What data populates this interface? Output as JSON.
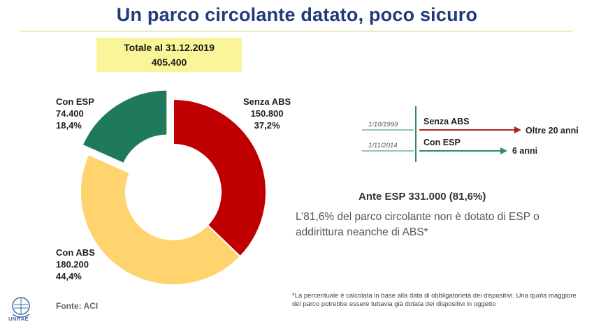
{
  "title": "Un parco circolante datato, poco sicuro",
  "total": {
    "line1": "Totale al 31.12.2019",
    "line2": "405.400"
  },
  "chart_data": {
    "type": "pie",
    "variant": "donut",
    "slices": [
      {
        "name": "Senza ABS",
        "value": 150800,
        "value_label": "150.800",
        "percent_label": "37,2%",
        "color": "#c00000",
        "exploded": false
      },
      {
        "name": "Con ABS",
        "value": 180200,
        "value_label": "180.200",
        "percent_label": "44,4%",
        "color": "#ffd36e",
        "exploded": false
      },
      {
        "name": "Con ESP",
        "value": 74400,
        "value_label": "74.400",
        "percent_label": "18,4%",
        "color": "#1f7a5c",
        "exploded": true
      }
    ]
  },
  "timeline": [
    {
      "date": "1/10/1999",
      "name": "Senza ABS",
      "end_label": "Oltre 20 anni",
      "color": "#b22222"
    },
    {
      "date": "1/11/2014",
      "name": "Con ESP",
      "end_label": "6 anni",
      "color": "#2e8b6e"
    }
  ],
  "ante": "Ante ESP 331.000 (81,6%)",
  "description": "L’81,6% del parco circolante non è dotato di ESP o addirittura neanche di ABS*",
  "footnote": "*La percentuale è calcolata in base alla data di obbligatorietà dei dispositivi. Una quota maggiore del parco potrebbe essere tuttavia già dotata dei dispositivi in oggetto",
  "source": "Fonte: ACI",
  "logo_text": "UNRAE"
}
